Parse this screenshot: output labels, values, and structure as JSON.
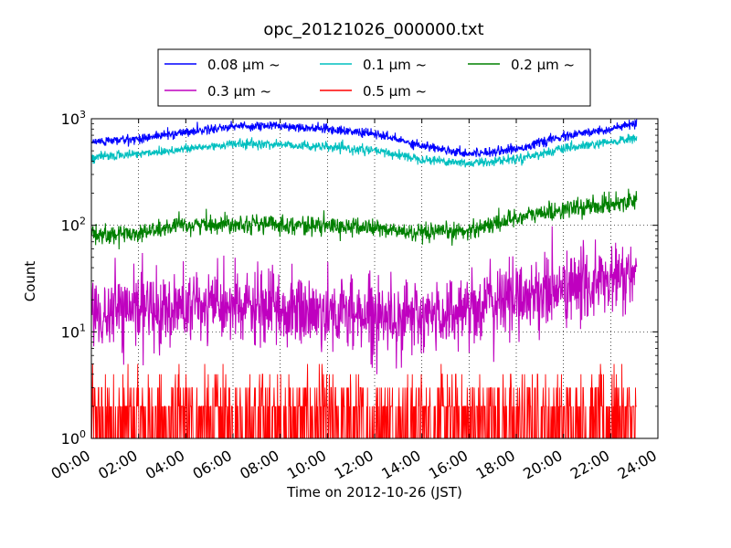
{
  "chart_data": {
    "type": "line",
    "title": "opc_20121026_000000.txt",
    "xlabel": "Time on 2012-10-26 (JST)",
    "ylabel": "Count",
    "yscale": "log",
    "ylim": [
      1,
      1000
    ],
    "xlim_hours": [
      0,
      24
    ],
    "data_end_hour": 23.1,
    "grid": true,
    "legend_position": "top (above plot)",
    "x_tick_labels": [
      "00:00",
      "02:00",
      "04:00",
      "06:00",
      "08:00",
      "10:00",
      "12:00",
      "14:00",
      "16:00",
      "18:00",
      "20:00",
      "22:00",
      "24:00"
    ],
    "y_tick_labels": [
      {
        "base": "10",
        "exp": "0"
      },
      {
        "base": "10",
        "exp": "1"
      },
      {
        "base": "10",
        "exp": "2"
      },
      {
        "base": "10",
        "exp": "3"
      }
    ],
    "series": [
      {
        "name": "0.08 μm ~",
        "color": "#0000ff",
        "noise": 0.05,
        "min_count": 1,
        "x": [
          0,
          2,
          4,
          6,
          8,
          10,
          12,
          14,
          16,
          18,
          20,
          22,
          23.1
        ],
        "values": [
          600,
          650,
          750,
          850,
          860,
          800,
          720,
          560,
          470,
          520,
          680,
          800,
          900
        ]
      },
      {
        "name": "0.1 μm ~",
        "color": "#00bfbf",
        "noise": 0.05,
        "min_count": 1,
        "x": [
          0,
          2,
          4,
          6,
          8,
          10,
          12,
          14,
          16,
          18,
          20,
          22,
          23.1
        ],
        "values": [
          430,
          470,
          520,
          580,
          575,
          540,
          500,
          420,
          380,
          420,
          520,
          600,
          660
        ]
      },
      {
        "name": "0.2 μm ~",
        "color": "#008000",
        "noise": 0.1,
        "min_count": 1,
        "x": [
          0,
          2,
          4,
          6,
          8,
          10,
          12,
          14,
          16,
          18,
          20,
          22,
          23.1
        ],
        "values": [
          80,
          85,
          100,
          105,
          102,
          98,
          95,
          82,
          90,
          118,
          140,
          158,
          178
        ]
      },
      {
        "name": "0.3 μm ~",
        "color": "#bf00bf",
        "noise": 0.4,
        "min_count": 4,
        "x": [
          0,
          2,
          4,
          6,
          8,
          10,
          12,
          14,
          16,
          18,
          20,
          22,
          23.1
        ],
        "values": [
          14,
          16,
          17,
          17,
          16,
          15,
          15,
          13,
          17,
          21,
          25,
          30,
          34
        ]
      },
      {
        "name": "0.5 μm ~",
        "color": "#ff0000",
        "noise": 0.75,
        "min_count": 1,
        "integer": true,
        "x": [
          0,
          2,
          4,
          6,
          8,
          10,
          12,
          14,
          16,
          18,
          20,
          22,
          23.1
        ],
        "values": [
          1.8,
          1.7,
          1.8,
          1.9,
          1.7,
          1.6,
          1.6,
          1.5,
          1.6,
          1.6,
          1.7,
          1.8,
          1.8
        ]
      }
    ]
  }
}
